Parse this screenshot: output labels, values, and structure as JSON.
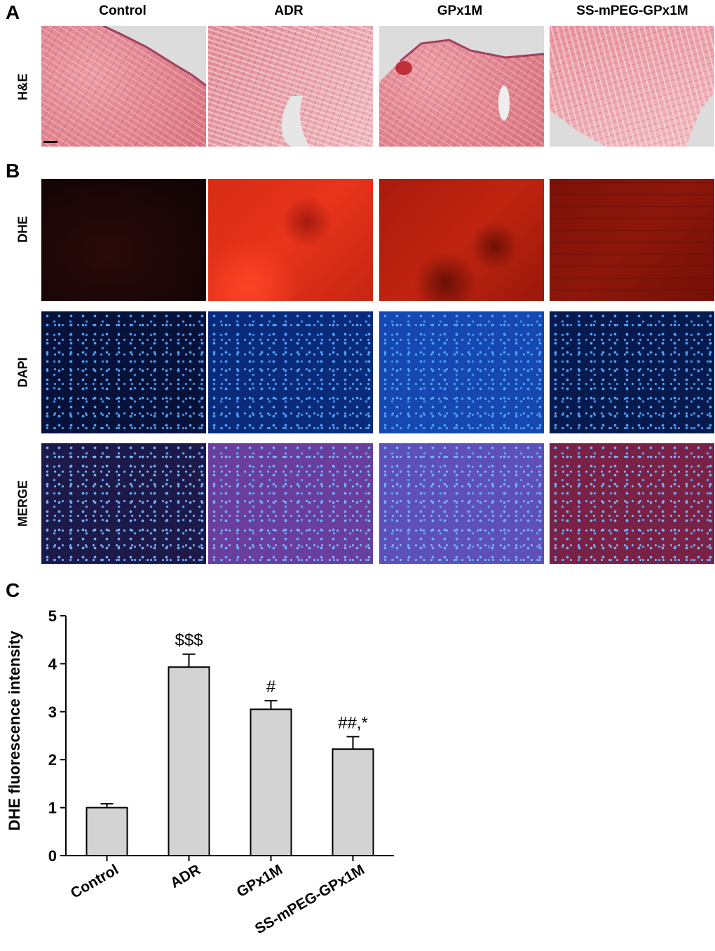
{
  "figure": {
    "panel_letters": [
      "A",
      "B",
      "C"
    ],
    "columns": [
      "Control",
      "ADR",
      "GPx1M",
      "SS-mPEG-GPx1M"
    ],
    "rows": {
      "he": "H&E",
      "dhe": "DHE",
      "dapi": "DAPI",
      "merge": "MERGE"
    }
  },
  "chart_data": {
    "type": "bar",
    "categories": [
      "Control",
      "ADR",
      "GPx1M",
      "SS-mPEG-GPx1M"
    ],
    "values": [
      1.0,
      3.93,
      3.05,
      2.22
    ],
    "errors": [
      0.08,
      0.27,
      0.18,
      0.26
    ],
    "annotations": [
      "",
      "$$$",
      "#",
      "##,*"
    ],
    "ylabel": "DHE fluorescence intensity",
    "xlabel": "",
    "ylim": [
      0,
      5
    ],
    "yticks": [
      0,
      1,
      2,
      3,
      4,
      5
    ],
    "bar_color": "#d3d3d3",
    "edge_color": "#000000",
    "grid": false
  }
}
